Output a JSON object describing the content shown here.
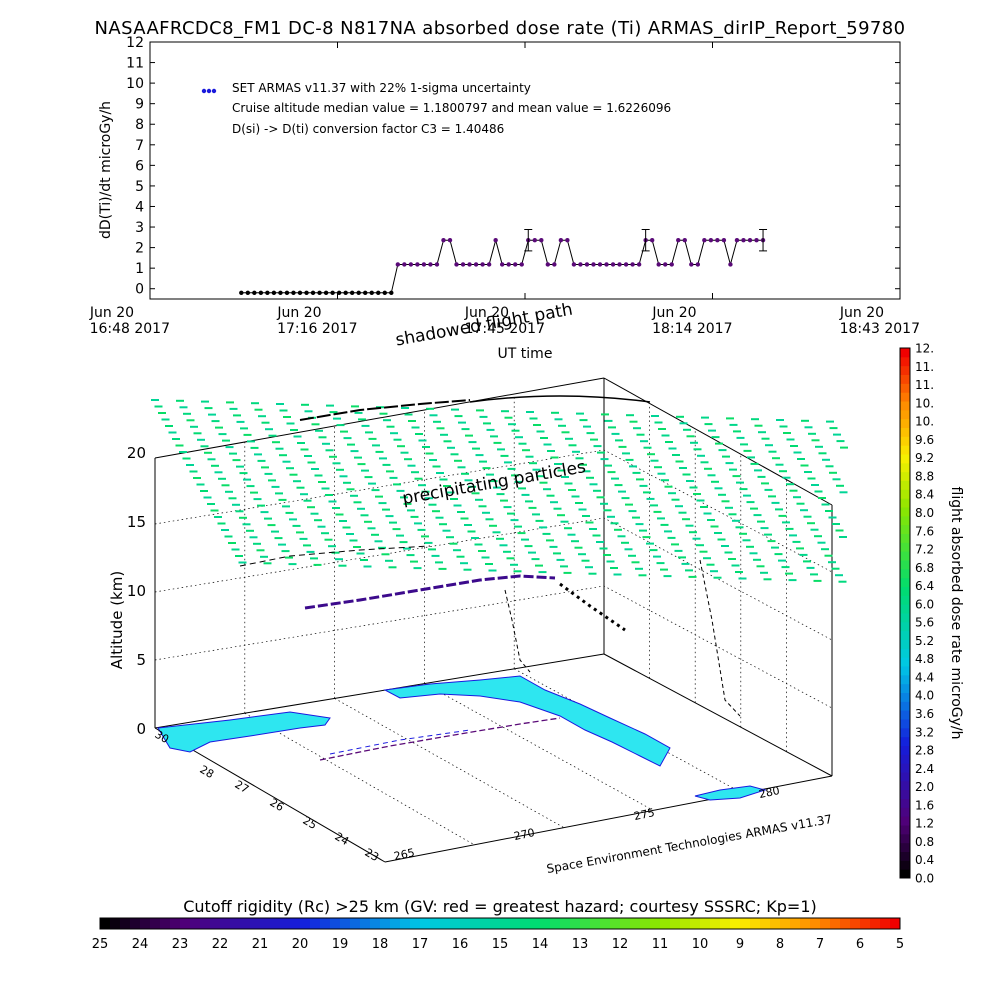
{
  "title": "NASAAFRCDC8_FM1 DC-8   N817NA absorbed dose rate (Ti) ARMAS_dirIP_Report_59780",
  "chart_data": [
    {
      "type": "line",
      "xlabel": "UT time",
      "ylabel": "dD(Ti)/dt microGy/h",
      "ylim": [
        0,
        12
      ],
      "y_ticks": [
        "0",
        "1",
        "2",
        "3",
        "4",
        "5",
        "6",
        "7",
        "8",
        "9",
        "10",
        "11",
        "12"
      ],
      "x_ticks": [
        {
          "date": "Jun 20",
          "time": "16:48 2017"
        },
        {
          "date": "Jun 20",
          "time": "17:16 2017"
        },
        {
          "date": "Jun 20",
          "time": "17:45 2017"
        },
        {
          "date": "Jun 20",
          "time": "18:14 2017"
        },
        {
          "date": "Jun 20",
          "time": "18:43 2017"
        }
      ],
      "legend": {
        "placement": "top-left",
        "series_label": "SET ARMAS v11.37 with 22% 1-sigma uncertainty",
        "notes": [
          "Cruise altitude median value = 1.1800797 and mean value = 1.6226096",
          "D(si) -> D(ti) conversion factor C3 = 1.40486"
        ]
      },
      "series_color": "#1a1adc",
      "marker_color": "#5a0a78",
      "x_range_minutes": [
        0,
        115
      ],
      "data": [
        [
          14,
          -0.2
        ],
        [
          15,
          -0.2
        ],
        [
          16,
          -0.2
        ],
        [
          17,
          -0.2
        ],
        [
          18,
          -0.2
        ],
        [
          19,
          -0.2
        ],
        [
          20,
          -0.2
        ],
        [
          21,
          -0.2
        ],
        [
          22,
          -0.2
        ],
        [
          23,
          -0.2
        ],
        [
          24,
          -0.2
        ],
        [
          25,
          -0.2
        ],
        [
          26,
          -0.2
        ],
        [
          27,
          -0.2
        ],
        [
          28,
          -0.2
        ],
        [
          29,
          -0.2
        ],
        [
          30,
          -0.2
        ],
        [
          31,
          -0.2
        ],
        [
          32,
          -0.2
        ],
        [
          33,
          -0.2
        ],
        [
          34,
          -0.2
        ],
        [
          35,
          -0.2
        ],
        [
          36,
          -0.2
        ],
        [
          37,
          -0.2
        ],
        [
          38,
          1.18
        ],
        [
          39,
          1.18
        ],
        [
          40,
          1.18
        ],
        [
          41,
          1.18
        ],
        [
          42,
          1.18
        ],
        [
          43,
          1.18
        ],
        [
          44,
          1.18
        ],
        [
          45,
          2.36
        ],
        [
          46,
          2.36
        ],
        [
          47,
          1.18
        ],
        [
          48,
          1.18
        ],
        [
          49,
          1.18
        ],
        [
          50,
          1.18
        ],
        [
          51,
          1.18
        ],
        [
          52,
          1.18
        ],
        [
          53,
          2.36
        ],
        [
          54,
          1.18
        ],
        [
          55,
          1.18
        ],
        [
          56,
          1.18
        ],
        [
          57,
          1.18
        ],
        [
          58,
          2.36
        ],
        [
          59,
          2.36
        ],
        [
          60,
          2.36
        ],
        [
          61,
          1.18
        ],
        [
          62,
          1.18
        ],
        [
          63,
          2.36
        ],
        [
          64,
          2.36
        ],
        [
          65,
          1.18
        ],
        [
          66,
          1.18
        ],
        [
          67,
          1.18
        ],
        [
          68,
          1.18
        ],
        [
          69,
          1.18
        ],
        [
          70,
          1.18
        ],
        [
          71,
          1.18
        ],
        [
          72,
          1.18
        ],
        [
          73,
          1.18
        ],
        [
          74,
          1.18
        ],
        [
          75,
          1.18
        ],
        [
          76,
          2.36
        ],
        [
          77,
          2.36
        ],
        [
          78,
          1.18
        ],
        [
          79,
          1.18
        ],
        [
          80,
          1.18
        ],
        [
          81,
          2.36
        ],
        [
          82,
          2.36
        ],
        [
          83,
          1.18
        ],
        [
          84,
          1.18
        ],
        [
          85,
          2.36
        ],
        [
          86,
          2.36
        ],
        [
          87,
          2.36
        ],
        [
          88,
          2.36
        ],
        [
          89,
          1.18
        ],
        [
          90,
          2.36
        ],
        [
          91,
          2.36
        ],
        [
          92,
          2.36
        ],
        [
          93,
          2.36
        ],
        [
          94,
          2.36
        ]
      ],
      "error_bars": [
        {
          "x": 58,
          "y": 2.36,
          "err": 0.52
        },
        {
          "x": 76,
          "y": 2.36,
          "err": 0.52
        },
        {
          "x": 94,
          "y": 2.36,
          "err": 0.52
        }
      ]
    },
    {
      "type": "scatter",
      "subtype": "3d-trajectory",
      "zlabel": "Altitude (km)",
      "z_ticks": [
        "0",
        "5",
        "10",
        "15",
        "20"
      ],
      "lat_ticks": [
        "23",
        "24",
        "25",
        "26",
        "27",
        "28",
        "30"
      ],
      "lon_ticks": [
        "265",
        "270",
        "275",
        "280"
      ],
      "annotations": [
        "shadowed flight path",
        "precipitating particles"
      ],
      "credit": "Space Environment Technologies ARMAS v11.37"
    }
  ],
  "colorbar_right": {
    "label": "flight absorbed dose rate microGy/h",
    "ticks": [
      "0.0",
      "0.4",
      "0.8",
      "1.2",
      "1.6",
      "2.0",
      "2.4",
      "2.8",
      "3.2",
      "3.6",
      "4.0",
      "4.4",
      "4.8",
      "5.2",
      "5.6",
      "6.0",
      "6.4",
      "6.8",
      "7.2",
      "7.6",
      "8.0",
      "8.4",
      "8.8",
      "9.2",
      "9.6",
      "10.",
      "10.",
      "11.",
      "11.",
      "12."
    ]
  },
  "colorbar_bottom": {
    "label": "Cutoff rigidity (Rc) >25 km (GV: red = greatest hazard; courtesy SSSRC; Kp=1)",
    "ticks": [
      "25",
      "24",
      "23",
      "22",
      "21",
      "20",
      "19",
      "18",
      "17",
      "16",
      "15",
      "14",
      "13",
      "12",
      "11",
      "10",
      "9",
      "8",
      "7",
      "6",
      "5"
    ]
  }
}
